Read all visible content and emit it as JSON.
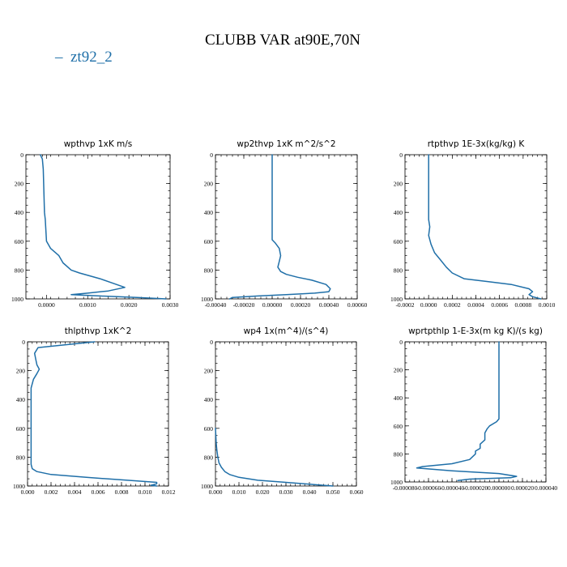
{
  "figure": {
    "title": "CLUBB VAR at90E,70N",
    "legend": {
      "label": "zt92_2",
      "color": "#1f6fa8"
    }
  },
  "chart_data": [
    {
      "type": "line",
      "title": "wpthvp   1xK m/s",
      "xlim": [
        -0.0005,
        0.003
      ],
      "ylim": [
        1000,
        0
      ],
      "xticks": [
        0.0,
        0.001,
        0.002,
        0.003
      ],
      "xtick_labels": [
        "0.0000",
        "0.0010",
        "0.0020",
        "0.0030"
      ],
      "yticks": [
        0,
        200,
        400,
        600,
        800,
        1000
      ],
      "ytick_labels": [
        "0",
        "200",
        "400",
        "600",
        "800",
        "1000"
      ],
      "series": [
        {
          "x": [
            -0.00015,
            -0.0001,
            -8e-05,
            -7e-05,
            -6e-05,
            -5e-05,
            -3e-05,
            -2e-05,
            0.0,
            0.0001,
            0.0003,
            0.0004,
            0.0006,
            0.0008,
            0.0013,
            0.0016,
            0.0019,
            0.0015,
            0.001,
            0.0006,
            0.0013,
            0.0022,
            0.0029
          ],
          "y": [
            0,
            30,
            100,
            200,
            300,
            400,
            450,
            500,
            600,
            650,
            700,
            750,
            800,
            820,
            860,
            890,
            920,
            945,
            960,
            970,
            980,
            990,
            1000
          ]
        }
      ]
    },
    {
      "type": "line",
      "title": "wp2thvp   1xK m^2/s^2",
      "xlim": [
        -0.0004,
        0.0006
      ],
      "ylim": [
        1000,
        0
      ],
      "xticks": [
        -0.0004,
        -0.0002,
        0.0,
        0.0002,
        0.0004,
        0.0006
      ],
      "xtick_labels": [
        "-0.00040",
        "-0.00020",
        "0.00000",
        "0.00020",
        "0.00040",
        "0.00060"
      ],
      "yticks": [
        0,
        200,
        400,
        600,
        800,
        1000
      ],
      "ytick_labels": [
        "0",
        "200",
        "400",
        "600",
        "800",
        "1000"
      ],
      "series": [
        {
          "x": [
            0.0,
            0.0,
            0.0,
            0.0,
            2e-05,
            5e-05,
            6e-05,
            5e-05,
            4e-05,
            6e-05,
            0.0001,
            0.00018,
            0.00028,
            0.00038,
            0.00041,
            0.0004,
            0.0003,
            0.0001,
            -0.0001,
            -0.00028,
            -0.0003
          ],
          "y": [
            0,
            200,
            400,
            590,
            610,
            650,
            700,
            740,
            780,
            810,
            830,
            850,
            870,
            900,
            930,
            950,
            960,
            970,
            980,
            990,
            1000
          ]
        }
      ]
    },
    {
      "type": "line",
      "title": "rtpthvp   1E-3x(kg/kg) K",
      "xlim": [
        -0.0002,
        0.001
      ],
      "ylim": [
        1000,
        0
      ],
      "xticks": [
        -0.0002,
        0.0,
        0.0002,
        0.0004,
        0.0006,
        0.0008,
        0.001
      ],
      "xtick_labels": [
        "-0.0002",
        "0.0000",
        "0.0002",
        "0.0004",
        "0.0006",
        "0.0008",
        "0.0010"
      ],
      "yticks": [
        0,
        200,
        400,
        600,
        800,
        1000
      ],
      "ytick_labels": [
        "0",
        "200",
        "400",
        "600",
        "800",
        "1000"
      ],
      "series": [
        {
          "x": [
            0.0,
            0.0,
            0.0,
            0.0,
            1e-05,
            0.0,
            2e-05,
            5e-05,
            0.0001,
            0.00015,
            0.0002,
            0.0003,
            0.0005,
            0.0007,
            0.00085,
            0.00088,
            0.00085,
            0.00088,
            0.00095
          ],
          "y": [
            0,
            200,
            400,
            450,
            500,
            560,
            620,
            680,
            730,
            780,
            820,
            860,
            880,
            900,
            930,
            950,
            970,
            985,
            1000
          ]
        }
      ]
    },
    {
      "type": "line",
      "title": "thlpthvp   1xK^2",
      "xlim": [
        0.0,
        0.012
      ],
      "ylim": [
        1000,
        0
      ],
      "xticks": [
        0.0,
        0.002,
        0.004,
        0.006,
        0.008,
        0.01,
        0.012
      ],
      "xtick_labels": [
        "0.000",
        "0.002",
        "0.004",
        "0.006",
        "0.008",
        "0.010",
        "0.012"
      ],
      "yticks": [
        0,
        200,
        400,
        600,
        800,
        1000
      ],
      "ytick_labels": [
        "0",
        "200",
        "400",
        "600",
        "800",
        "1000"
      ],
      "series": [
        {
          "x": [
            0.0057,
            0.0009,
            0.0006,
            0.0007,
            0.0008,
            0.001,
            0.0008,
            0.0005,
            0.0003,
            0.0003,
            0.0003,
            0.0003,
            0.0004,
            0.0008,
            0.002,
            0.005,
            0.0085,
            0.011,
            0.011,
            0.0105,
            0.011
          ],
          "y": [
            0,
            40,
            80,
            120,
            160,
            190,
            220,
            260,
            320,
            500,
            700,
            850,
            880,
            900,
            920,
            940,
            960,
            975,
            985,
            995,
            1000
          ]
        }
      ]
    },
    {
      "type": "line",
      "title": "wp4   1x(m^4)/(s^4)",
      "xlim": [
        0.0,
        0.06
      ],
      "ylim": [
        1000,
        0
      ],
      "xticks": [
        0.0,
        0.01,
        0.02,
        0.03,
        0.04,
        0.05,
        0.06
      ],
      "xtick_labels": [
        "0.000",
        "0.010",
        "0.020",
        "0.030",
        "0.040",
        "0.050",
        "0.060"
      ],
      "yticks": [
        0,
        200,
        400,
        600,
        800,
        1000
      ],
      "ytick_labels": [
        "0",
        "200",
        "400",
        "600",
        "800",
        "1000"
      ],
      "series": [
        {
          "x": [
            0.0,
            0.0003,
            0.0006,
            0.001,
            0.0015,
            0.0025,
            0.004,
            0.006,
            0.01,
            0.018,
            0.03,
            0.042,
            0.05
          ],
          "y": [
            600,
            700,
            750,
            800,
            840,
            870,
            900,
            920,
            940,
            960,
            975,
            990,
            1000
          ]
        }
      ]
    },
    {
      "type": "line",
      "title": "wprtpthlp   1-E-3x(m kg K)/(s kg)",
      "xlim": [
        -8e-05,
        4e-05
      ],
      "ylim": [
        1000,
        0
      ],
      "xticks": [
        -8e-05,
        -6e-05,
        -4e-05,
        -2e-05,
        0.0,
        2e-05,
        4e-05
      ],
      "xtick_labels": [
        "-0.000080",
        "-0.000060",
        "-0.000040",
        "-0.000020",
        "0.000000",
        "0.000020",
        "0.000040"
      ],
      "yticks": [
        0,
        200,
        400,
        600,
        800,
        1000
      ],
      "ytick_labels": [
        "0",
        "200",
        "400",
        "600",
        "800",
        "1000"
      ],
      "series": [
        {
          "x": [
            0.0,
            0.0,
            0.0,
            0.0,
            -2e-06,
            -8e-06,
            -1e-05,
            -1.2e-05,
            -1.2e-05,
            -1.6e-05,
            -1.6e-05,
            -2e-05,
            -2e-05,
            -2.5e-05,
            -4e-05,
            -6.5e-05,
            -7e-05,
            -4e-05,
            0.0,
            1.5e-05,
            1e-05,
            -2.5e-05,
            -3.5e-05
          ],
          "y": [
            0,
            200,
            400,
            550,
            570,
            600,
            620,
            650,
            700,
            730,
            760,
            780,
            800,
            840,
            870,
            890,
            900,
            920,
            940,
            960,
            970,
            980,
            990
          ]
        }
      ]
    }
  ]
}
